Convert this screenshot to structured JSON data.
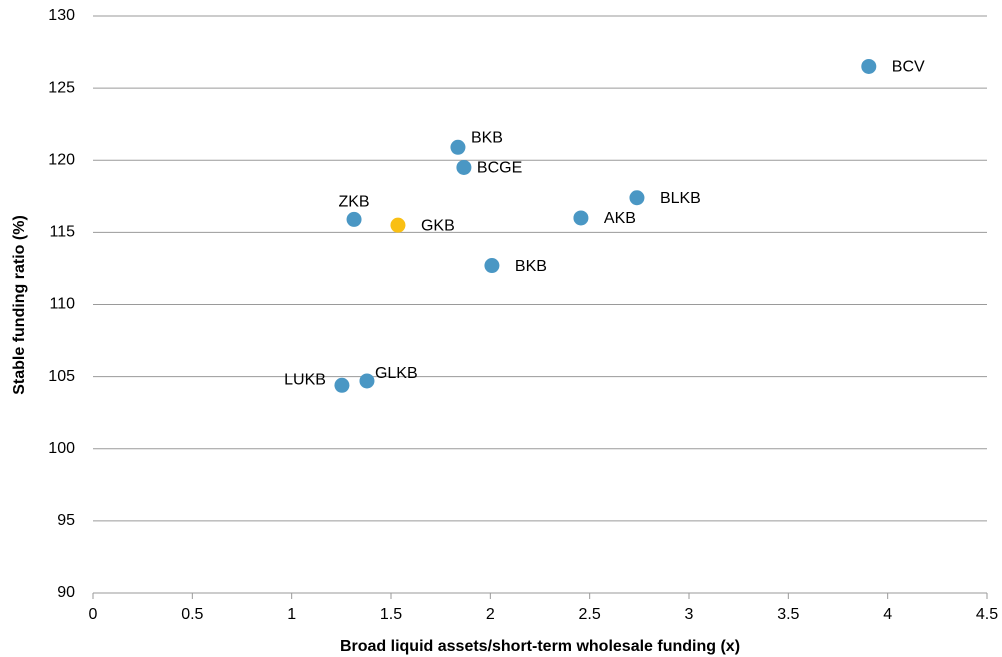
{
  "chart_data": {
    "type": "scatter",
    "x_label": "Broad liquid assets/short-term wholesale funding (x)",
    "y_label": "Stable funding ratio (%)",
    "x": [
      3.905,
      1.837,
      1.867,
      2.738,
      2.456,
      1.314,
      1.535,
      2.008,
      1.379,
      1.253
    ],
    "values": [
      126.5,
      120.9,
      119.5,
      117.4,
      116.0,
      115.9,
      115.5,
      112.7,
      104.7,
      104.4
    ],
    "labels": [
      "BCV",
      "BKB",
      "BCGE",
      "BLKB",
      "AKB",
      "ZKB",
      "GKB",
      "BKB",
      "GLKB",
      "LUKB"
    ],
    "colors": [
      "#4a97c4",
      "#4a97c4",
      "#4a97c4",
      "#4a97c4",
      "#4a97c4",
      "#4a97c4",
      "#f9bf13",
      "#4a97c4",
      "#4a97c4",
      "#4a97c4"
    ],
    "xlim": [
      0,
      4.5
    ],
    "xticks": [
      0,
      0.5,
      1,
      1.5,
      2,
      2.5,
      3,
      3.5,
      4,
      4.5
    ],
    "ylim": [
      90,
      130
    ],
    "yticks": [
      90,
      95,
      100,
      105,
      110,
      115,
      120,
      125,
      130
    ],
    "grid": true
  }
}
